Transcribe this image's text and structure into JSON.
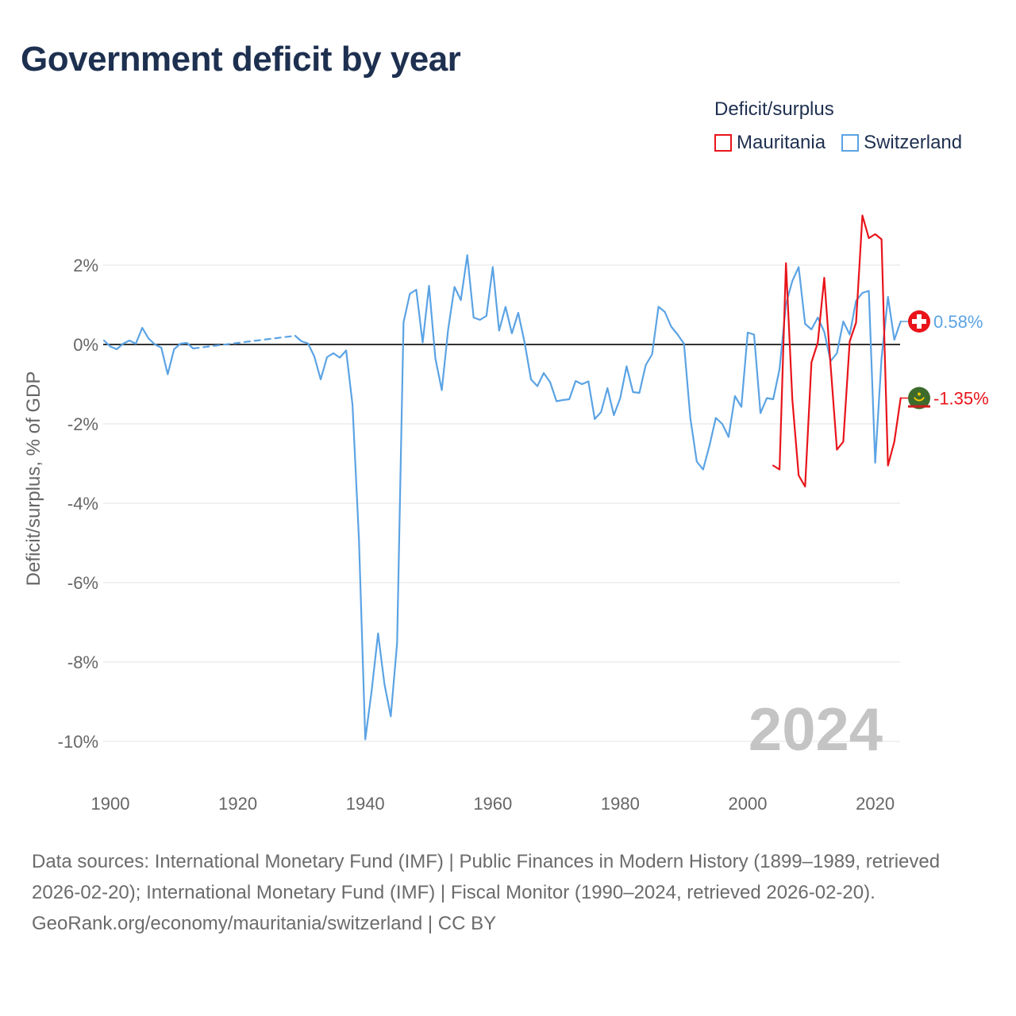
{
  "title": "Government deficit by year",
  "legend": {
    "title": "Deficit/surplus",
    "items": [
      {
        "label": "Mauritania",
        "color": "#e8141a"
      },
      {
        "label": "Switzerland",
        "color": "#5ba3e4"
      }
    ]
  },
  "footer": {
    "sources": "Data sources: International Monetary Fund (IMF) | Public Finances in Modern History (1899–1989, retrieved 2026-02-20); International Monetary Fund (IMF) | Fiscal Monitor (1990–2024, retrieved 2026-02-20).",
    "credit": "GeoRank.org/economy/mauritania/switzerland | CC BY"
  },
  "chart_data": {
    "type": "line",
    "title": "Government deficit by year",
    "xlabel": "",
    "ylabel": "Deficit/surplus, % of GDP",
    "xlim": [
      1899,
      2024
    ],
    "ylim": [
      -11,
      3.5
    ],
    "grid": true,
    "x_ticks": [
      {
        "value": 1900,
        "label": "1900"
      },
      {
        "value": 1920,
        "label": "1920"
      },
      {
        "value": 1940,
        "label": "1940"
      },
      {
        "value": 1960,
        "label": "1960"
      },
      {
        "value": 1980,
        "label": "1980"
      },
      {
        "value": 2000,
        "label": "2000"
      },
      {
        "value": 2020,
        "label": "2020"
      }
    ],
    "y_ticks": [
      {
        "value": 2,
        "label": "2%"
      },
      {
        "value": 0,
        "label": "0%"
      },
      {
        "value": -2,
        "label": "-2%"
      },
      {
        "value": -4,
        "label": "-4%"
      },
      {
        "value": -6,
        "label": "-6%"
      },
      {
        "value": -8,
        "label": "-8%"
      },
      {
        "value": -10,
        "label": "-10%"
      }
    ],
    "year_watermark": "2024",
    "series": [
      {
        "name": "Switzerland",
        "color": "#5ba3e4",
        "end_label": "0.58%",
        "flag": "switzerland",
        "segments": [
          {
            "style": "solid",
            "x": [
              1899,
              1900,
              1901,
              1902,
              1903,
              1904,
              1905,
              1906,
              1907,
              1908,
              1909,
              1910,
              1911,
              1912,
              1913
            ],
            "y": [
              0.1,
              -0.05,
              -0.12,
              0.02,
              0.1,
              0.02,
              0.42,
              0.15,
              0.0,
              -0.08,
              -0.75,
              -0.12,
              0.02,
              0.04,
              -0.1
            ]
          },
          {
            "style": "dashed",
            "x": [
              1913,
              1929
            ],
            "y": [
              -0.1,
              0.22
            ]
          },
          {
            "style": "solid",
            "x": [
              1929,
              1930,
              1931,
              1932,
              1933,
              1934,
              1935,
              1936,
              1937,
              1938,
              1939,
              1940,
              1941,
              1942,
              1943,
              1944,
              1945,
              1946,
              1947,
              1948,
              1949,
              1950,
              1951,
              1952,
              1953,
              1954,
              1955,
              1956,
              1957,
              1958,
              1959,
              1960,
              1961,
              1962,
              1963,
              1964,
              1965,
              1966,
              1967,
              1968,
              1969,
              1970,
              1971,
              1972,
              1973,
              1974,
              1975,
              1976,
              1977,
              1978,
              1979,
              1980,
              1981,
              1982,
              1983,
              1984,
              1985,
              1986,
              1987,
              1988,
              1989,
              1990,
              1991,
              1992,
              1993,
              1994,
              1995,
              1996,
              1997,
              1998,
              1999,
              2000,
              2001,
              2002,
              2003,
              2004,
              2005,
              2006,
              2007,
              2008,
              2009,
              2010,
              2011,
              2012,
              2013,
              2014,
              2015,
              2016,
              2017,
              2018,
              2019,
              2020,
              2021,
              2022,
              2023,
              2024
            ],
            "y": [
              0.22,
              0.08,
              0.03,
              -0.3,
              -0.88,
              -0.32,
              -0.22,
              -0.33,
              -0.15,
              -1.52,
              -4.9,
              -9.95,
              -8.73,
              -7.28,
              -8.55,
              -9.37,
              -7.52,
              0.56,
              1.28,
              1.38,
              0.05,
              1.48,
              -0.35,
              -1.15,
              0.38,
              1.45,
              1.12,
              2.25,
              0.68,
              0.62,
              0.72,
              1.95,
              0.35,
              0.95,
              0.28,
              0.8,
              0.05,
              -0.88,
              -1.05,
              -0.72,
              -0.95,
              -1.43,
              -1.4,
              -1.38,
              -0.92,
              -1.0,
              -0.93,
              -1.88,
              -1.7,
              -1.1,
              -1.78,
              -1.35,
              -0.55,
              -1.2,
              -1.22,
              -0.52,
              -0.25,
              0.95,
              0.82,
              0.45,
              0.25,
              0.02,
              -1.85,
              -2.95,
              -3.15,
              -2.55,
              -1.85,
              -2.0,
              -2.33,
              -1.3,
              -1.57,
              0.3,
              0.25,
              -1.73,
              -1.35,
              -1.38,
              -0.62,
              1.02,
              1.6,
              1.95,
              0.52,
              0.38,
              0.68,
              0.32,
              -0.42,
              -0.22,
              0.58,
              0.25,
              1.1,
              1.3,
              1.35,
              -2.98,
              -0.35,
              1.2,
              0.12,
              0.58
            ]
          }
        ]
      },
      {
        "name": "Mauritania",
        "color": "#e8141a",
        "end_label": "-1.35%",
        "flag": "mauritania",
        "segments": [
          {
            "style": "solid",
            "x": [
              2004,
              2005,
              2006,
              2007,
              2008,
              2009,
              2010,
              2011,
              2012,
              2013,
              2014,
              2015,
              2016,
              2017,
              2018,
              2019,
              2020,
              2021,
              2022,
              2023,
              2024
            ],
            "y": [
              -3.05,
              -3.15,
              2.05,
              -1.38,
              -3.3,
              -3.58,
              -0.45,
              0.05,
              1.68,
              -0.52,
              -2.65,
              -2.45,
              0.08,
              0.55,
              3.25,
              2.68,
              2.78,
              2.65,
              -3.05,
              -2.45,
              -1.35
            ]
          }
        ]
      }
    ]
  }
}
